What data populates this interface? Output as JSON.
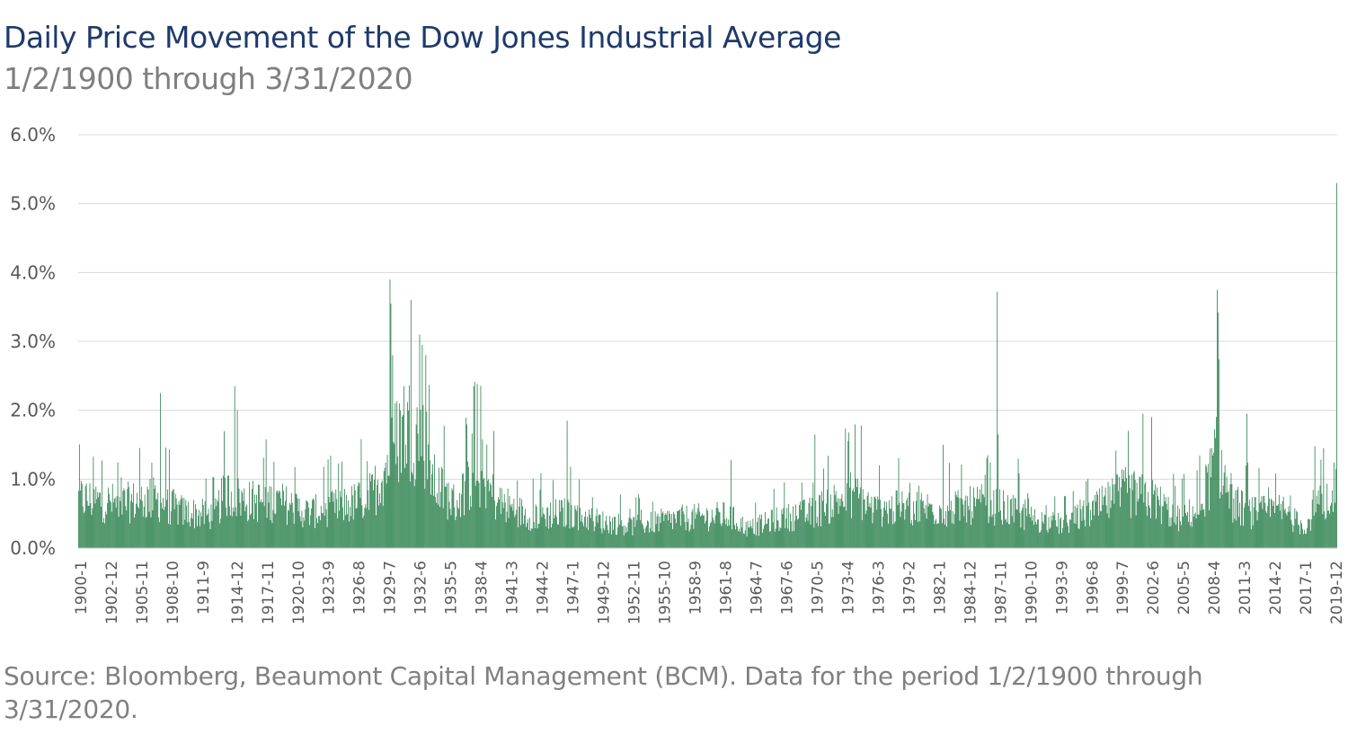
{
  "title": "Daily Price Movement of the Dow Jones Industrial Average",
  "subtitle": "1/2/1900 through 3/31/2020",
  "source": "Source: Bloomberg, Beaumont Capital Management (BCM). Data for the period 1/2/1900 through 3/31/2020.",
  "colors": {
    "bar": "#217a45",
    "grid": "#d9d9d9",
    "title": "#1f3a6b",
    "text": "#595959"
  },
  "chart_data": {
    "type": "bar",
    "title": "Daily Price Movement of the Dow Jones Industrial Average",
    "subtitle": "1/2/1900 through 3/31/2020",
    "xlabel": "",
    "ylabel": "",
    "ylim": [
      0,
      6
    ],
    "y_ticks": [
      "0.0%",
      "1.0%",
      "2.0%",
      "3.0%",
      "4.0%",
      "5.0%",
      "6.0%"
    ],
    "y_tick_values": [
      0,
      1,
      2,
      3,
      4,
      5,
      6
    ],
    "x_range": [
      "1900-1",
      "2020-3"
    ],
    "x_tick_labels": [
      "1900-1",
      "1902-12",
      "1905-11",
      "1908-10",
      "1911-9",
      "1914-12",
      "1917-11",
      "1920-10",
      "1923-9",
      "1926-8",
      "1929-7",
      "1932-6",
      "1935-5",
      "1938-4",
      "1941-3",
      "1944-2",
      "1947-1",
      "1949-12",
      "1952-11",
      "1955-10",
      "1958-9",
      "1961-8",
      "1964-7",
      "1967-6",
      "1970-5",
      "1973-4",
      "1976-3",
      "1979-2",
      "1982-1",
      "1984-12",
      "1987-11",
      "1990-10",
      "1993-9",
      "1996-8",
      "1999-7",
      "2002-6",
      "2005-5",
      "2008-4",
      "2011-3",
      "2014-2",
      "2017-1",
      "2019-12"
    ],
    "grid": true,
    "legend": "none",
    "baseline_by_year": [
      [
        1900,
        0.85
      ],
      [
        1904,
        0.75
      ],
      [
        1907,
        0.85
      ],
      [
        1910,
        0.62
      ],
      [
        1913,
        0.55
      ],
      [
        1914,
        0.95
      ],
      [
        1916,
        0.8
      ],
      [
        1919,
        0.8
      ],
      [
        1922,
        0.6
      ],
      [
        1926,
        0.75
      ],
      [
        1928,
        0.9
      ],
      [
        1929.6,
        1.5
      ],
      [
        1931,
        2.1
      ],
      [
        1933,
        1.9
      ],
      [
        1934,
        1.1
      ],
      [
        1936,
        0.75
      ],
      [
        1938,
        1.3
      ],
      [
        1940,
        0.8
      ],
      [
        1943,
        0.55
      ],
      [
        1947,
        0.6
      ],
      [
        1950,
        0.45
      ],
      [
        1953,
        0.38
      ],
      [
        1957,
        0.5
      ],
      [
        1962,
        0.55
      ],
      [
        1964,
        0.33
      ],
      [
        1967,
        0.5
      ],
      [
        1970,
        0.6
      ],
      [
        1974,
        0.95
      ],
      [
        1976,
        0.65
      ],
      [
        1980,
        0.7
      ],
      [
        1983,
        0.65
      ],
      [
        1986,
        0.75
      ],
      [
        1988,
        0.7
      ],
      [
        1991,
        0.5
      ],
      [
        1994,
        0.4
      ],
      [
        1997,
        0.65
      ],
      [
        2000,
        0.95
      ],
      [
        2003,
        0.8
      ],
      [
        2005,
        0.5
      ],
      [
        2007,
        0.65
      ],
      [
        2008.8,
        1.6
      ],
      [
        2010,
        0.8
      ],
      [
        2012,
        0.6
      ],
      [
        2015,
        0.65
      ],
      [
        2017,
        0.35
      ],
      [
        2018.5,
        0.75
      ],
      [
        2019.5,
        0.5
      ],
      [
        2020.2,
        1.6
      ]
    ],
    "notable_peaks": [
      {
        "date": "1907-11",
        "value": 2.25
      },
      {
        "date": "1914-12",
        "value": 2.35
      },
      {
        "date": "1915-3",
        "value": 2.0
      },
      {
        "date": "1929-10",
        "value": 3.9
      },
      {
        "date": "1929-11",
        "value": 3.55
      },
      {
        "date": "1931-10",
        "value": 3.6
      },
      {
        "date": "1932-8",
        "value": 3.1
      },
      {
        "date": "1932-11",
        "value": 2.95
      },
      {
        "date": "1933-3",
        "value": 2.8
      },
      {
        "date": "1937-10",
        "value": 2.35
      },
      {
        "date": "1939-9",
        "value": 1.7
      },
      {
        "date": "1946-9",
        "value": 1.85
      },
      {
        "date": "1962-5",
        "value": 1.28
      },
      {
        "date": "1970-5",
        "value": 1.65
      },
      {
        "date": "1974-10",
        "value": 1.78
      },
      {
        "date": "1982-8",
        "value": 1.5
      },
      {
        "date": "1987-10",
        "value": 3.72
      },
      {
        "date": "1987-11",
        "value": 1.65
      },
      {
        "date": "1989-10",
        "value": 1.3
      },
      {
        "date": "2000-4",
        "value": 1.7
      },
      {
        "date": "2001-9",
        "value": 1.95
      },
      {
        "date": "2002-7",
        "value": 1.9
      },
      {
        "date": "2008-10",
        "value": 3.75
      },
      {
        "date": "2008-11",
        "value": 3.42
      },
      {
        "date": "2011-8",
        "value": 1.95
      },
      {
        "date": "2018-2",
        "value": 1.48
      },
      {
        "date": "2018-12",
        "value": 1.45
      },
      {
        "date": "2020-2",
        "value": 1.15
      },
      {
        "date": "2020-3",
        "value": 5.3
      }
    ]
  }
}
